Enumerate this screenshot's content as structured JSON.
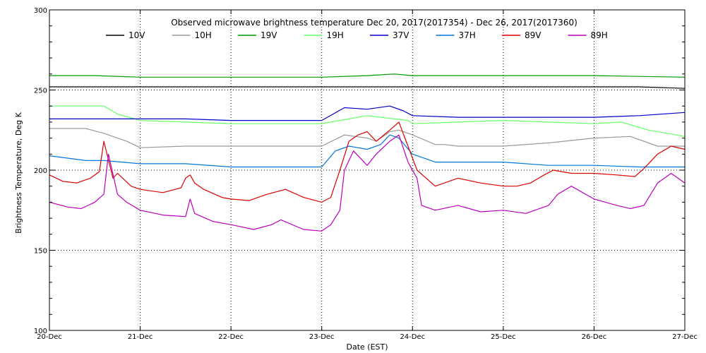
{
  "chart_data": {
    "type": "line",
    "title": "Observed microwave brightness temperature Dec 20, 2017(2017354) - Dec 26, 2017(2017360)",
    "xlabel": "Date (EST)",
    "ylabel": "Brightness Temperature, Deg K",
    "xlim": [
      0,
      7
    ],
    "ylim": [
      100,
      300
    ],
    "yticks": [
      100,
      150,
      200,
      250,
      300
    ],
    "ytick_labels": [
      "100",
      "150",
      "200",
      "250",
      "300"
    ],
    "xticks": [
      0,
      1,
      2,
      3,
      4,
      5,
      6,
      7
    ],
    "xtick_labels": [
      "20-Dec",
      "21-Dec",
      "22-Dec",
      "23-Dec",
      "24-Dec",
      "25-Dec",
      "26-Dec",
      "27-Dec"
    ],
    "grid": true,
    "legend_placement": "top",
    "series": [
      {
        "name": "10V",
        "color": "#000000",
        "x": [
          0,
          0.5,
          1,
          1.5,
          2,
          2.5,
          3,
          3.5,
          4,
          4.5,
          5,
          5.5,
          6,
          6.5,
          7
        ],
        "y": [
          252,
          252,
          252,
          252,
          252,
          252,
          252,
          252,
          252,
          252,
          252,
          252,
          252,
          252,
          251
        ]
      },
      {
        "name": "10H",
        "color": "#999999",
        "x": [
          0,
          0.4,
          0.6,
          0.7,
          0.85,
          1,
          1.5,
          2,
          2.5,
          3,
          3.25,
          3.5,
          3.6,
          3.75,
          3.85,
          4,
          4.25,
          4.35,
          4.5,
          5,
          5.5,
          6,
          6.4,
          6.7,
          7
        ],
        "y": [
          226,
          226,
          223,
          221,
          218,
          214,
          215,
          215,
          215,
          215,
          222,
          220,
          218,
          224,
          225,
          222,
          216,
          216,
          215,
          215,
          217,
          220,
          221,
          215,
          215
        ]
      },
      {
        "name": "19V",
        "color": "#009900",
        "x": [
          0,
          0.5,
          1,
          2,
          3,
          3.5,
          3.8,
          4,
          4.5,
          5,
          6,
          7
        ],
        "y": [
          259,
          259,
          258,
          258,
          258,
          259,
          260,
          259,
          259,
          259,
          259,
          258
        ]
      },
      {
        "name": "19H",
        "color": "#66ff66",
        "x": [
          0,
          0.6,
          0.75,
          1,
          1.5,
          2,
          2.5,
          3,
          3.2,
          3.5,
          3.65,
          3.8,
          3.95,
          4,
          4.5,
          5,
          5.5,
          6,
          6.3,
          6.6,
          7
        ],
        "y": [
          240,
          240,
          235,
          231,
          230,
          229,
          229,
          229,
          231,
          234,
          233,
          232,
          231,
          229,
          230,
          231,
          230,
          229,
          230,
          225,
          221
        ]
      },
      {
        "name": "37V",
        "color": "#0000cc",
        "x": [
          0,
          0.5,
          1,
          1.5,
          2,
          2.5,
          3,
          3.25,
          3.5,
          3.75,
          3.9,
          4,
          4.5,
          5,
          5.5,
          6,
          6.5,
          7
        ],
        "y": [
          232,
          232,
          232,
          232,
          231,
          231,
          231,
          239,
          238,
          240,
          237,
          234,
          233,
          233,
          233,
          233,
          234,
          236
        ]
      },
      {
        "name": "37H",
        "color": "#0077dd",
        "x": [
          0,
          0.4,
          0.6,
          0.8,
          1,
          1.5,
          2,
          2.5,
          3,
          3.15,
          3.3,
          3.5,
          3.65,
          3.75,
          3.85,
          4,
          4.25,
          4.5,
          5,
          5.5,
          6,
          6.5,
          7
        ],
        "y": [
          209,
          206,
          206,
          205,
          204,
          204,
          202,
          202,
          202,
          212,
          215,
          213,
          216,
          222,
          220,
          210,
          205,
          205,
          205,
          203,
          203,
          202,
          202
        ]
      },
      {
        "name": "89V",
        "color": "#dd0000",
        "x": [
          0,
          0.15,
          0.3,
          0.45,
          0.55,
          0.6,
          0.7,
          0.75,
          0.9,
          1,
          1.25,
          1.45,
          1.5,
          1.55,
          1.6,
          1.7,
          1.9,
          2,
          2.2,
          2.4,
          2.6,
          2.8,
          3,
          3.1,
          3.2,
          3.3,
          3.4,
          3.5,
          3.6,
          3.75,
          3.85,
          3.95,
          4.05,
          4.15,
          4.25,
          4.4,
          4.5,
          4.75,
          5,
          5.15,
          5.3,
          5.45,
          5.55,
          5.75,
          6,
          6.25,
          6.45,
          6.55,
          6.7,
          6.85,
          7
        ],
        "y": [
          197,
          193,
          192,
          195,
          199,
          218,
          195,
          198,
          190,
          188,
          186,
          189,
          195,
          197,
          192,
          188,
          183,
          182,
          181,
          185,
          188,
          183,
          180,
          183,
          200,
          218,
          222,
          224,
          218,
          225,
          230,
          215,
          200,
          195,
          190,
          193,
          195,
          192,
          190,
          190,
          192,
          197,
          200,
          198,
          198,
          197,
          196,
          201,
          210,
          215,
          213
        ]
      },
      {
        "name": "89H",
        "color": "#bb00bb",
        "x": [
          0,
          0.2,
          0.35,
          0.5,
          0.6,
          0.65,
          0.75,
          0.85,
          1,
          1.25,
          1.5,
          1.55,
          1.6,
          1.8,
          2,
          2.25,
          2.45,
          2.55,
          2.8,
          3,
          3.1,
          3.2,
          3.25,
          3.35,
          3.5,
          3.6,
          3.75,
          3.85,
          3.95,
          4.05,
          4.1,
          4.25,
          4.5,
          4.75,
          5,
          5.25,
          5.5,
          5.6,
          5.75,
          6,
          6.25,
          6.4,
          6.55,
          6.7,
          6.85,
          7
        ],
        "y": [
          180,
          177,
          176,
          180,
          185,
          210,
          185,
          180,
          175,
          172,
          171,
          182,
          173,
          168,
          166,
          163,
          166,
          169,
          163,
          162,
          166,
          175,
          200,
          212,
          203,
          210,
          218,
          222,
          205,
          195,
          178,
          175,
          178,
          174,
          175,
          173,
          178,
          185,
          190,
          182,
          178,
          176,
          178,
          192,
          198,
          192
        ]
      }
    ]
  }
}
